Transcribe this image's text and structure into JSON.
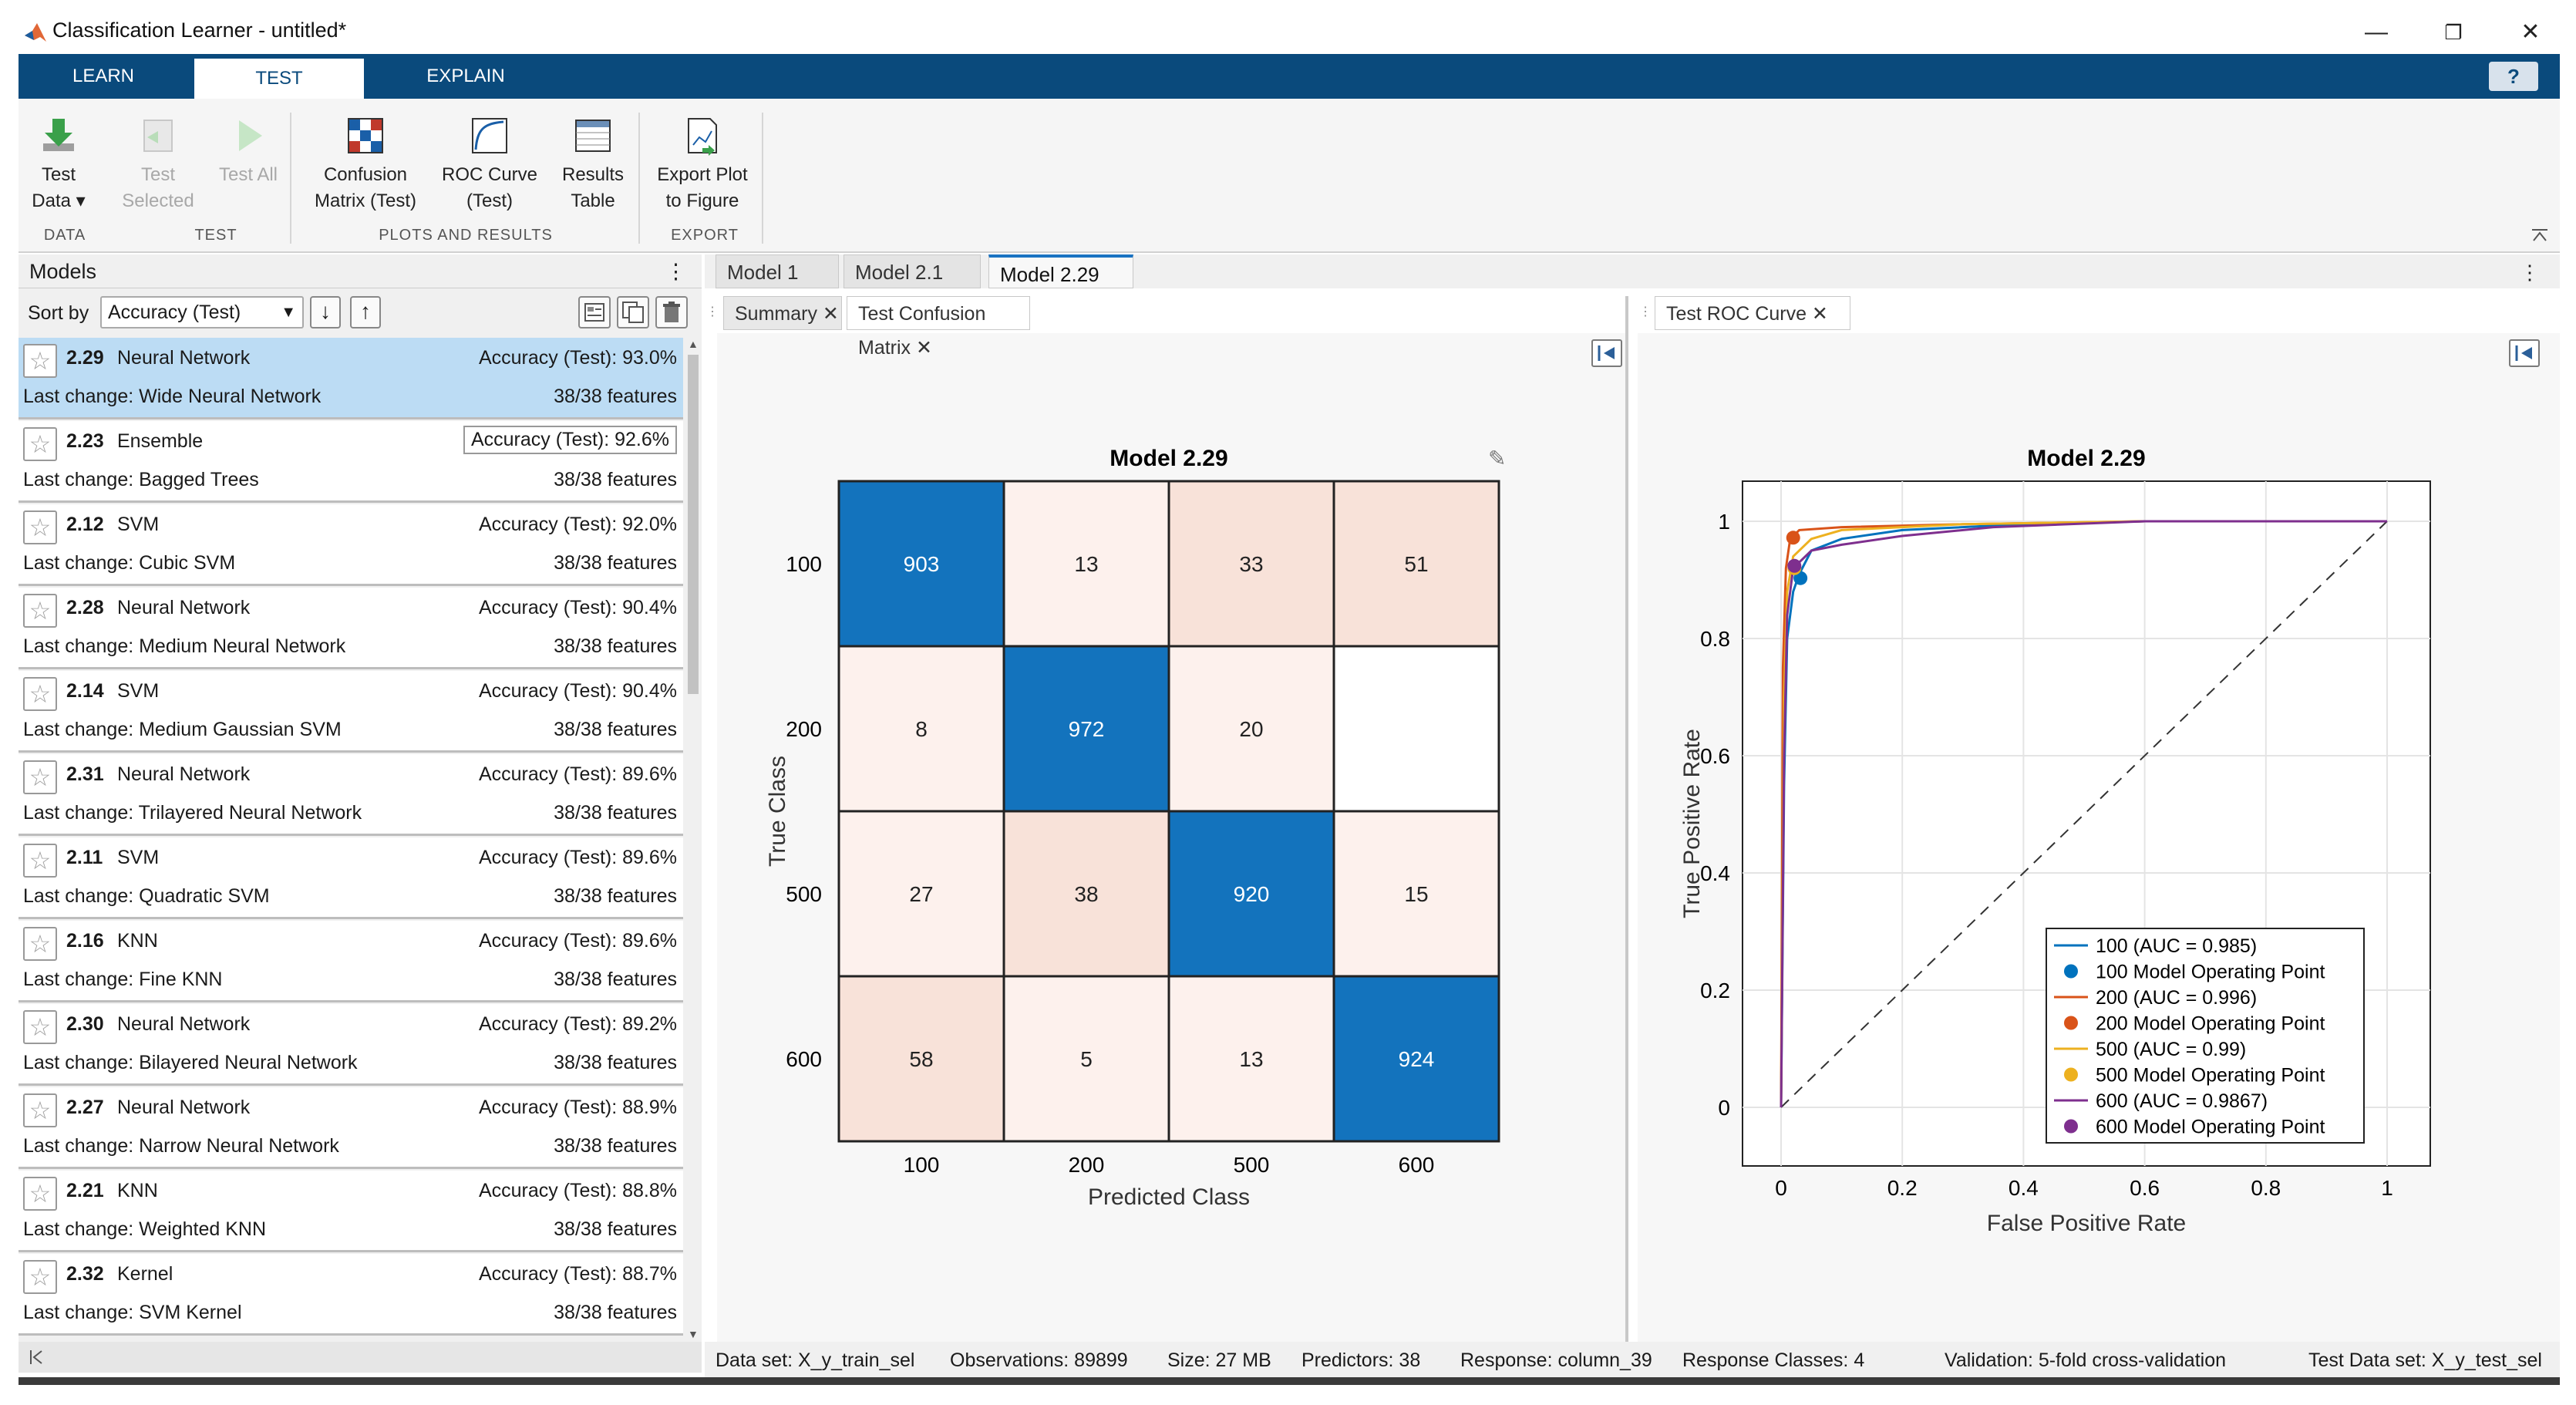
{
  "window": {
    "title": "Classification Learner - untitled*",
    "minimize": "—",
    "restore": "❐",
    "close": "✕"
  },
  "ribbon": {
    "tabs": [
      "LEARN",
      "TEST",
      "EXPLAIN"
    ],
    "help": "?",
    "tools": {
      "test_data": [
        "Test",
        "Data ▾"
      ],
      "test_selected": [
        "Test",
        "Selected"
      ],
      "test_all": "Test All",
      "confusion": [
        "Confusion",
        "Matrix (Test)"
      ],
      "roc": [
        "ROC Curve",
        "(Test)"
      ],
      "results": [
        "Results",
        "Table"
      ],
      "export": [
        "Export Plot",
        "to Figure"
      ]
    },
    "sections": [
      "DATA",
      "TEST",
      "PLOTS AND RESULTS",
      "EXPORT"
    ]
  },
  "models_panel": {
    "title": "Models",
    "menu": "⋮",
    "sort_label": "Sort by",
    "sort_value": "Accuracy (Test)",
    "sort_desc": "↓",
    "sort_asc": "↑",
    "items": [
      {
        "num": "2.29",
        "type": "Neural Network",
        "acc": "Accuracy (Test): 93.0%",
        "last": "Last change: Wide Neural Network",
        "feat": "38/38 features"
      },
      {
        "num": "2.23",
        "type": "Ensemble",
        "acc": "Accuracy (Test): 92.6%",
        "last": "Last change: Bagged Trees",
        "feat": "38/38 features"
      },
      {
        "num": "2.12",
        "type": "SVM",
        "acc": "Accuracy (Test): 92.0%",
        "last": "Last change: Cubic SVM",
        "feat": "38/38 features"
      },
      {
        "num": "2.28",
        "type": "Neural Network",
        "acc": "Accuracy (Test): 90.4%",
        "last": "Last change: Medium Neural Network",
        "feat": "38/38 features"
      },
      {
        "num": "2.14",
        "type": "SVM",
        "acc": "Accuracy (Test): 90.4%",
        "last": "Last change: Medium Gaussian SVM",
        "feat": "38/38 features"
      },
      {
        "num": "2.31",
        "type": "Neural Network",
        "acc": "Accuracy (Test): 89.6%",
        "last": "Last change: Trilayered Neural Network",
        "feat": "38/38 features"
      },
      {
        "num": "2.11",
        "type": "SVM",
        "acc": "Accuracy (Test): 89.6%",
        "last": "Last change: Quadratic SVM",
        "feat": "38/38 features"
      },
      {
        "num": "2.16",
        "type": "KNN",
        "acc": "Accuracy (Test): 89.6%",
        "last": "Last change: Fine KNN",
        "feat": "38/38 features"
      },
      {
        "num": "2.30",
        "type": "Neural Network",
        "acc": "Accuracy (Test): 89.2%",
        "last": "Last change: Bilayered Neural Network",
        "feat": "38/38 features"
      },
      {
        "num": "2.27",
        "type": "Neural Network",
        "acc": "Accuracy (Test): 88.9%",
        "last": "Last change: Narrow Neural Network",
        "feat": "38/38 features"
      },
      {
        "num": "2.21",
        "type": "KNN",
        "acc": "Accuracy (Test): 88.8%",
        "last": "Last change: Weighted KNN",
        "feat": "38/38 features"
      },
      {
        "num": "2.32",
        "type": "Kernel",
        "acc": "Accuracy (Test): 88.7%",
        "last": "Last change: SVM Kernel",
        "feat": "38/38 features"
      }
    ]
  },
  "doc_tabs": [
    "Model 1",
    "Model 2.1",
    "Model 2.29"
  ],
  "doc_menu": "⋮",
  "sub_tabs": [
    "Summary ✕",
    "Test Confusion Matrix ✕"
  ],
  "roc_tab": "Test ROC Curve ✕",
  "confusion": {
    "title": "Model 2.29",
    "xlabel": "Predicted Class",
    "ylabel": "True Class",
    "classes": [
      "100",
      "200",
      "500",
      "600"
    ],
    "matrix": [
      [
        903,
        13,
        33,
        51
      ],
      [
        8,
        972,
        20,
        null
      ],
      [
        27,
        38,
        920,
        15
      ],
      [
        58,
        5,
        13,
        924
      ]
    ],
    "colors": {
      "diag": "#1373bd",
      "light": "#fdf1ed",
      "mid": "#f8e2d9",
      "white": "#ffffff"
    }
  },
  "chart_data": {
    "type": "line",
    "title": "Model 2.29",
    "xlabel": "False Positive Rate",
    "ylabel": "True Positive Rate",
    "xlim": [
      0,
      1
    ],
    "ylim": [
      0,
      1
    ],
    "xticks": [
      "0",
      "0.2",
      "0.4",
      "0.6",
      "0.8",
      "1"
    ],
    "yticks": [
      "0",
      "0.2",
      "0.4",
      "0.6",
      "0.8",
      "1"
    ],
    "grid": true,
    "legend_position": "bottom-right",
    "series": [
      {
        "name": "100 (AUC = 0.985)",
        "color": "#0072bd",
        "x": [
          0,
          0.005,
          0.01,
          0.02,
          0.03,
          0.05,
          0.1,
          0.2,
          0.4,
          0.6,
          1
        ],
        "y": [
          0,
          0.55,
          0.8,
          0.88,
          0.91,
          0.95,
          0.97,
          0.985,
          0.995,
          1,
          1
        ]
      },
      {
        "name": "200 (AUC = 0.996)",
        "color": "#d95319",
        "x": [
          0,
          0.003,
          0.008,
          0.015,
          0.03,
          0.1,
          0.3,
          0.6,
          1
        ],
        "y": [
          0,
          0.75,
          0.92,
          0.97,
          0.985,
          0.99,
          0.995,
          1,
          1
        ]
      },
      {
        "name": "500 (AUC = 0.99)",
        "color": "#edb120",
        "x": [
          0,
          0.005,
          0.01,
          0.02,
          0.05,
          0.1,
          0.3,
          0.6,
          1
        ],
        "y": [
          0,
          0.7,
          0.88,
          0.94,
          0.97,
          0.985,
          0.995,
          1,
          1
        ]
      },
      {
        "name": "600 (AUC = 0.9867)",
        "color": "#7e2f8e",
        "x": [
          0,
          0.005,
          0.01,
          0.02,
          0.05,
          0.1,
          0.2,
          0.35,
          0.6,
          1
        ],
        "y": [
          0,
          0.6,
          0.84,
          0.92,
          0.95,
          0.96,
          0.975,
          0.99,
          1,
          1
        ]
      }
    ],
    "operating_points": [
      {
        "name": "100 Model Operating Point",
        "color": "#0072bd",
        "x": 0.032,
        "y": 0.903
      },
      {
        "name": "200 Model Operating Point",
        "color": "#d95319",
        "x": 0.02,
        "y": 0.972
      },
      {
        "name": "500 Model Operating Point",
        "color": "#edb120",
        "x": 0.022,
        "y": 0.92
      },
      {
        "name": "600 Model Operating Point",
        "color": "#7e2f8e",
        "x": 0.022,
        "y": 0.924
      }
    ],
    "legend": [
      "100 (AUC = 0.985)",
      "100 Model Operating Point",
      "200 (AUC = 0.996)",
      "200 Model Operating Point",
      "500 (AUC = 0.99)",
      "500 Model Operating Point",
      "600 (AUC = 0.9867)",
      "600 Model Operating Point"
    ]
  },
  "status": {
    "dataset": "Data set: X_y_train_sel",
    "observations": "Observations: 89899",
    "size": "Size: 27 MB",
    "predictors": "Predictors: 38",
    "response": "Response: column_39",
    "classes": "Response Classes: 4",
    "validation": "Validation: 5-fold cross-validation",
    "testset": "Test Data set: X_y_test_sel"
  }
}
